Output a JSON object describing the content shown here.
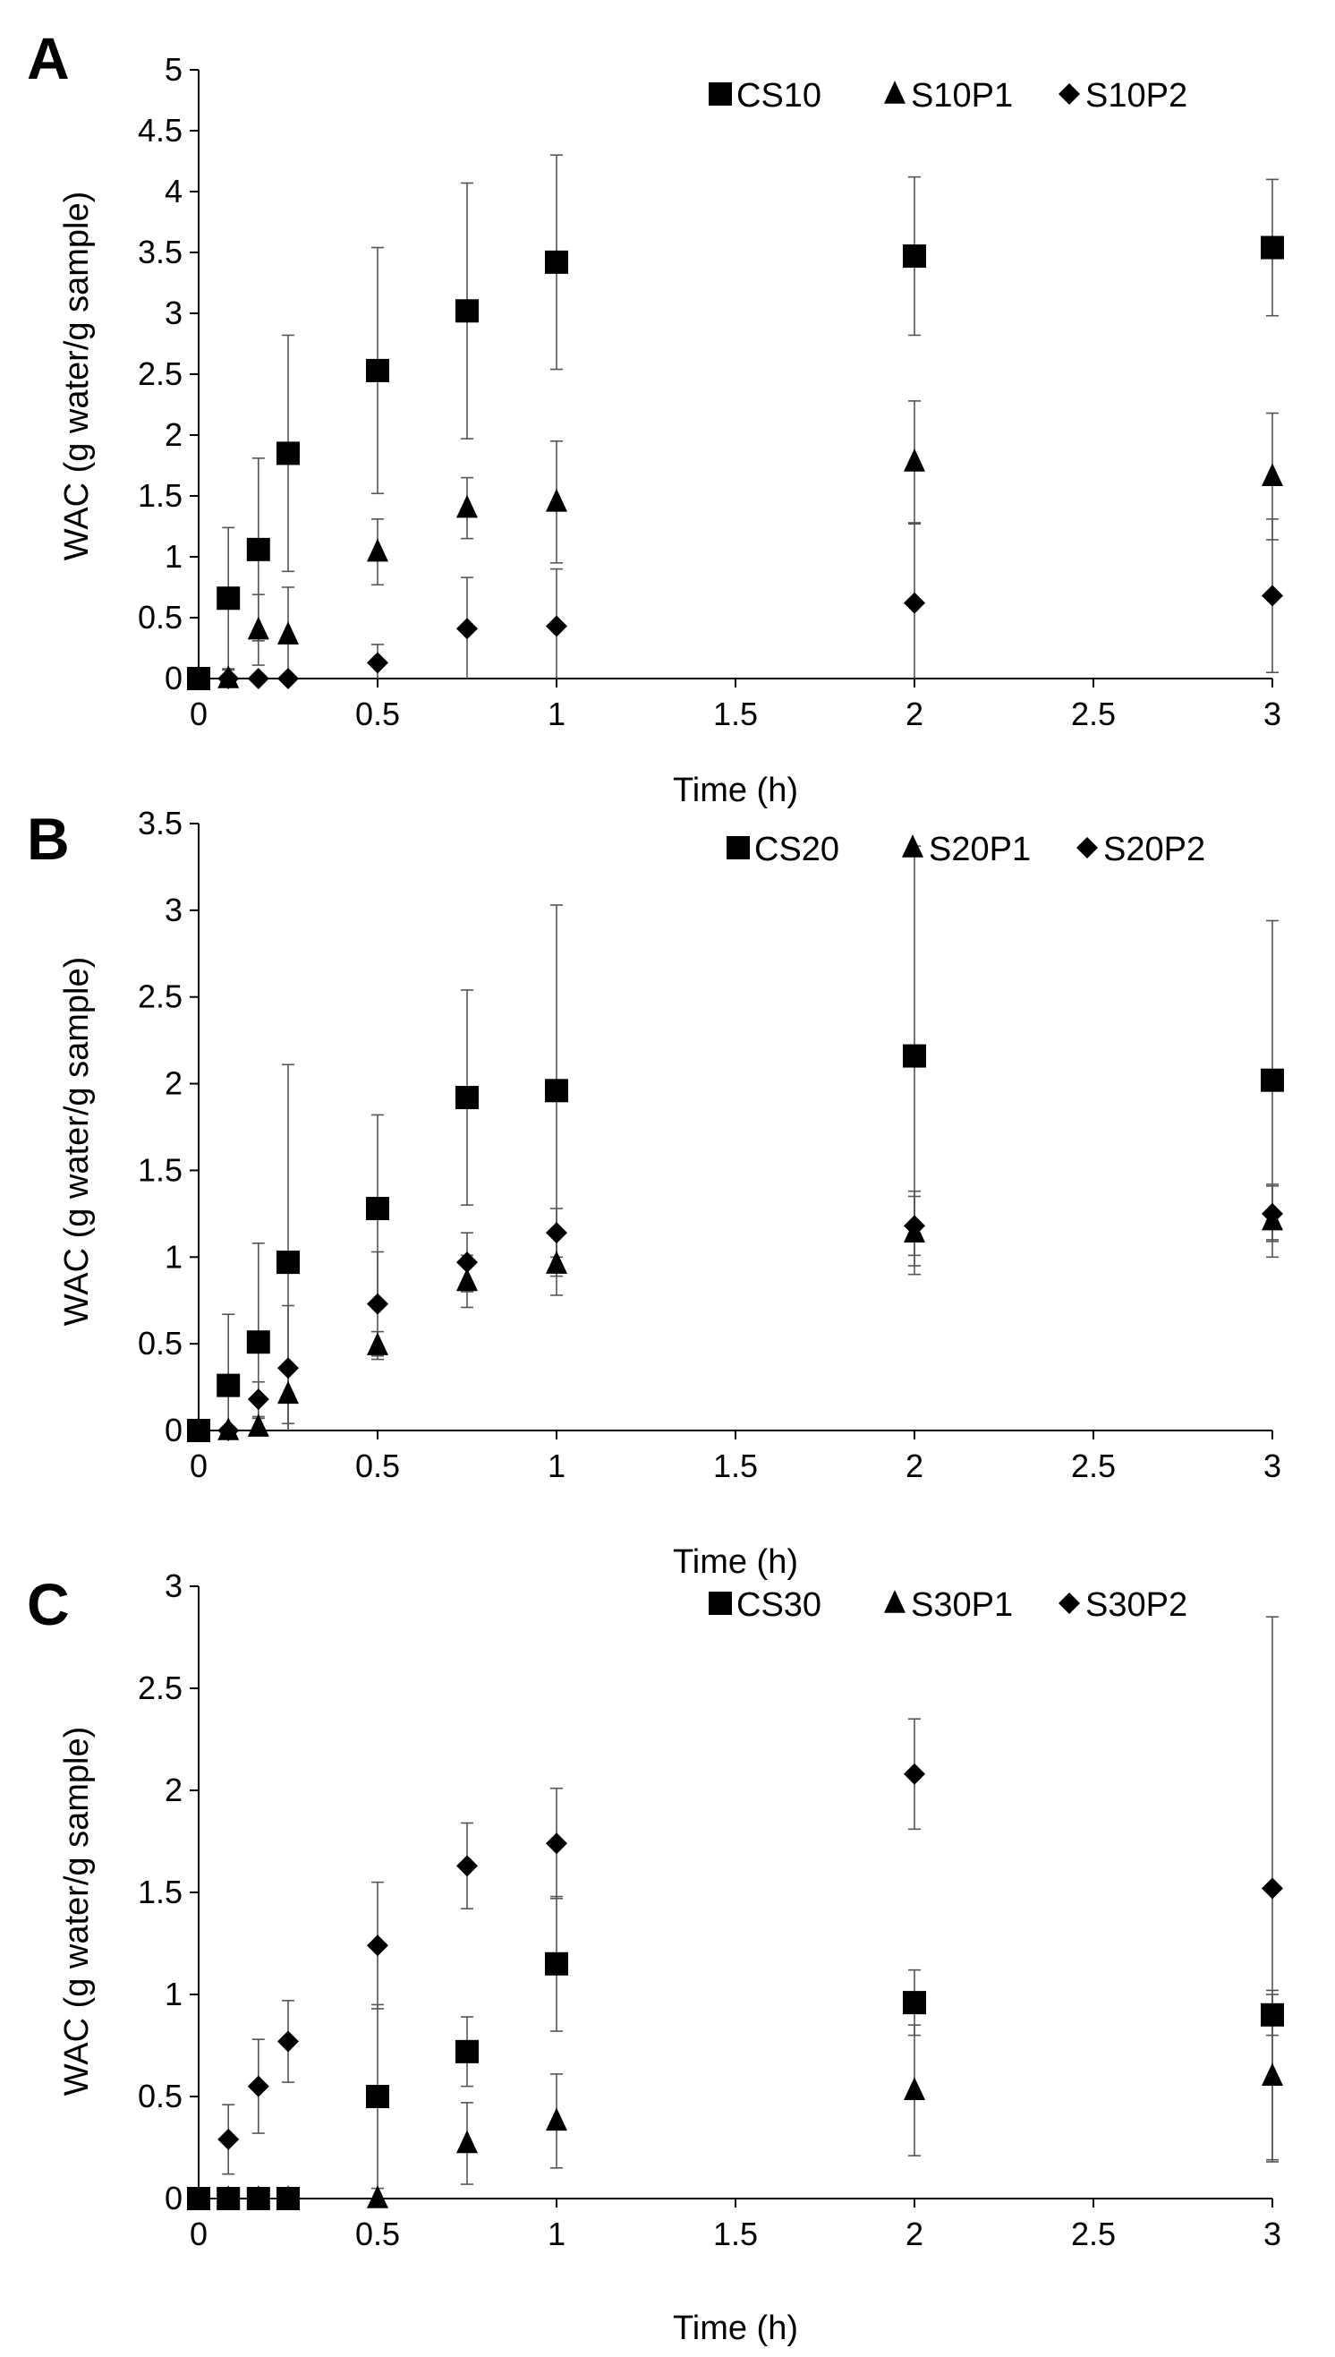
{
  "colors": {
    "marker": "#000000",
    "axis": "#000000",
    "error_bar": "#555555"
  },
  "chart_data": [
    {
      "panel": "A",
      "type": "scatter",
      "xlabel": "Time (h)",
      "ylabel": "WAC (g water/g sample)",
      "xlim": [
        0,
        3
      ],
      "ylim": [
        0,
        5
      ],
      "x_ticks": [
        0,
        0.5,
        1,
        1.5,
        2,
        2.5,
        3
      ],
      "x_tick_labels": [
        "0",
        "0.5",
        "1",
        "1.5",
        "2",
        "2.5",
        "3"
      ],
      "y_ticks": [
        0,
        0.5,
        1,
        1.5,
        2,
        2.5,
        3,
        3.5,
        4,
        4.5,
        5
      ],
      "y_tick_labels": [
        "0",
        "0.5",
        "1",
        "1.5",
        "2",
        "2.5",
        "3",
        "3.5",
        "4",
        "4.5",
        "5"
      ],
      "grid": false,
      "legend_position": "top-right",
      "x": [
        0,
        0.083,
        0.167,
        0.25,
        0.5,
        0.75,
        1,
        2,
        3
      ],
      "series": [
        {
          "name": "CS10",
          "marker": "square",
          "values": [
            0,
            0.66,
            1.06,
            1.85,
            2.53,
            3.02,
            3.42,
            3.47,
            3.54
          ],
          "errors": [
            0,
            0.58,
            0.75,
            0.97,
            1.01,
            1.05,
            0.88,
            0.65,
            0.56
          ]
        },
        {
          "name": "S10P1",
          "marker": "triangle",
          "values": [
            0,
            0,
            0.4,
            0.36,
            1.04,
            1.4,
            1.45,
            1.78,
            1.66
          ],
          "errors": [
            0,
            0.07,
            0.29,
            0.39,
            0.27,
            0.25,
            0.5,
            0.5,
            0.52
          ]
        },
        {
          "name": "S10P2",
          "marker": "diamond",
          "values": [
            0,
            0,
            0,
            0,
            0.13,
            0.41,
            0.43,
            0.62,
            0.68
          ],
          "errors": [
            0,
            0,
            0,
            0,
            0.15,
            0.42,
            0.47,
            0.65,
            0.63
          ]
        }
      ]
    },
    {
      "panel": "B",
      "type": "scatter",
      "xlabel": "Time (h)",
      "ylabel": "WAC (g water/g sample)",
      "xlim": [
        0,
        3
      ],
      "ylim": [
        0,
        3.5
      ],
      "x_ticks": [
        0,
        0.5,
        1,
        1.5,
        2,
        2.5,
        3
      ],
      "x_tick_labels": [
        "0",
        "0.5",
        "1",
        "1.5",
        "2",
        "2.5",
        "3"
      ],
      "y_ticks": [
        0,
        0.5,
        1,
        1.5,
        2,
        2.5,
        3,
        3.5
      ],
      "y_tick_labels": [
        "0",
        "0.5",
        "1",
        "1.5",
        "2",
        "2.5",
        "3",
        "3.5"
      ],
      "grid": false,
      "legend_position": "top-right",
      "x": [
        0,
        0.083,
        0.167,
        0.25,
        0.5,
        0.75,
        1,
        2,
        3
      ],
      "series": [
        {
          "name": "CS20",
          "marker": "square",
          "values": [
            0,
            0.26,
            0.51,
            0.97,
            1.28,
            1.92,
            1.96,
            2.16,
            2.02
          ],
          "errors": [
            0,
            0.41,
            0.57,
            1.14,
            0.54,
            0.62,
            1.07,
            1.21,
            0.92
          ]
        },
        {
          "name": "S20P1",
          "marker": "triangle",
          "values": [
            0,
            0,
            0.02,
            0.21,
            0.49,
            0.86,
            0.96,
            1.14,
            1.21
          ],
          "errors": [
            0,
            0.02,
            0.05,
            0.17,
            0.08,
            0.15,
            0.18,
            0.24,
            0.21
          ]
        },
        {
          "name": "S20P2",
          "marker": "diamond",
          "values": [
            0,
            0,
            0.18,
            0.36,
            0.73,
            0.97,
            1.14,
            1.18,
            1.25
          ],
          "errors": [
            0,
            0,
            0.1,
            0.36,
            0.3,
            0.17,
            0.14,
            0.17,
            0.16
          ]
        }
      ]
    },
    {
      "panel": "C",
      "type": "scatter",
      "xlabel": "Time (h)",
      "ylabel": "WAC (g water/g sample)",
      "xlim": [
        0,
        3
      ],
      "ylim": [
        0,
        3
      ],
      "x_ticks": [
        0,
        0.5,
        1,
        1.5,
        2,
        2.5,
        3
      ],
      "x_tick_labels": [
        "0",
        "0.5",
        "1",
        "1.5",
        "2",
        "2.5",
        "3"
      ],
      "y_ticks": [
        0,
        0.5,
        1,
        1.5,
        2,
        2.5,
        3
      ],
      "y_tick_labels": [
        "0",
        "0.5",
        "1",
        "1.5",
        "2",
        "2.5",
        "3"
      ],
      "grid": false,
      "legend_position": "top-right",
      "x": [
        0,
        0.083,
        0.167,
        0.25,
        0.5,
        0.75,
        1,
        2,
        3
      ],
      "series": [
        {
          "name": "CS30",
          "marker": "square",
          "values": [
            0,
            0,
            0,
            0,
            0.5,
            0.72,
            1.15,
            0.96,
            0.9
          ],
          "errors": [
            0,
            0,
            0,
            0,
            0.45,
            0.17,
            0.33,
            0.16,
            0.1
          ]
        },
        {
          "name": "S30P1",
          "marker": "triangle",
          "values": [
            0,
            0,
            0,
            0,
            0,
            0.27,
            0.38,
            0.53,
            0.6
          ],
          "errors": [
            0,
            0,
            0,
            0,
            0,
            0.2,
            0.23,
            0.32,
            0.42
          ]
        },
        {
          "name": "S30P2",
          "marker": "diamond",
          "values": [
            0,
            0.29,
            0.55,
            0.77,
            1.24,
            1.63,
            1.74,
            2.08,
            1.52
          ],
          "errors": [
            0,
            0.17,
            0.23,
            0.2,
            0.31,
            0.21,
            0.27,
            0.27,
            1.33
          ]
        }
      ]
    }
  ]
}
